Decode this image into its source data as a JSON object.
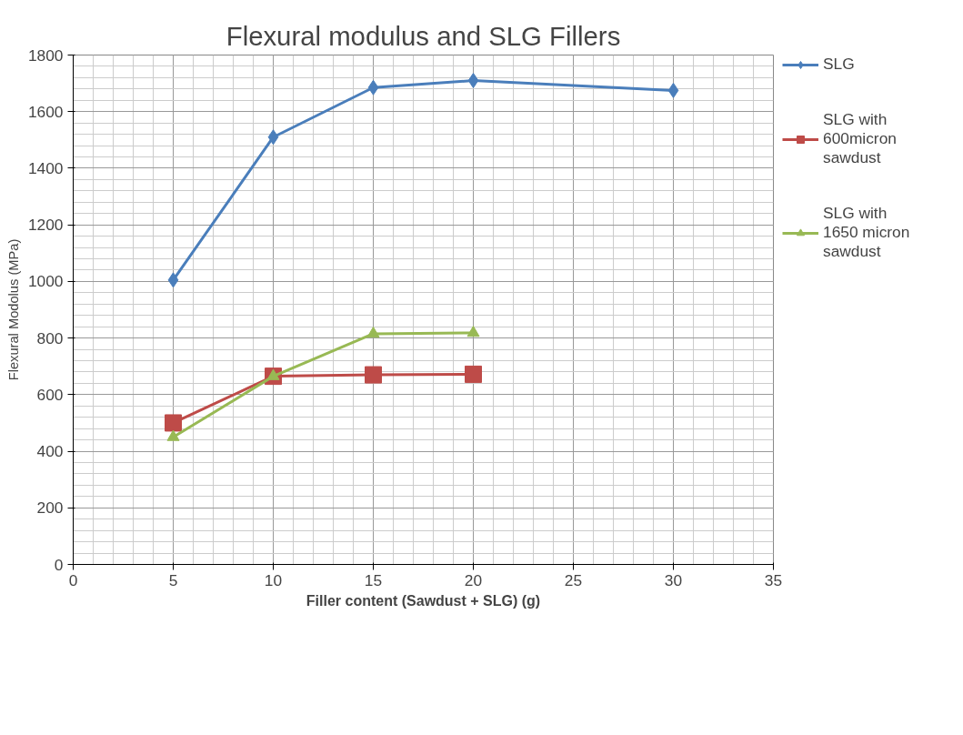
{
  "chart_data": {
    "type": "line",
    "title": "Flexural modulus and SLG Fillers",
    "xlabel": "Filler content (Sawdust + SLG) (g)",
    "ylabel": "Flexural Modolus (MPa)",
    "x": [
      5,
      10,
      15,
      20,
      30
    ],
    "series": [
      {
        "name": "SLG",
        "color": "#4a7ebb",
        "marker": "diamond",
        "values": [
          1005,
          1510,
          1685,
          1710,
          1675
        ]
      },
      {
        "name": "SLG with 600micron sawdust",
        "color": "#be4b48",
        "marker": "square",
        "values": [
          500,
          665,
          670,
          672,
          null
        ]
      },
      {
        "name": "SLG with 1650 micron sawdust",
        "color": "#98b954",
        "marker": "triangle",
        "values": [
          450,
          665,
          815,
          818,
          null
        ]
      }
    ],
    "xlim": [
      0,
      35
    ],
    "xticks": [
      0,
      5,
      10,
      15,
      20,
      25,
      30,
      35
    ],
    "ylim": [
      0,
      1800
    ],
    "yticks": [
      0,
      200,
      400,
      600,
      800,
      1000,
      1200,
      1400,
      1600,
      1800
    ],
    "grid": true,
    "legend": "right",
    "line_style": "solid"
  }
}
